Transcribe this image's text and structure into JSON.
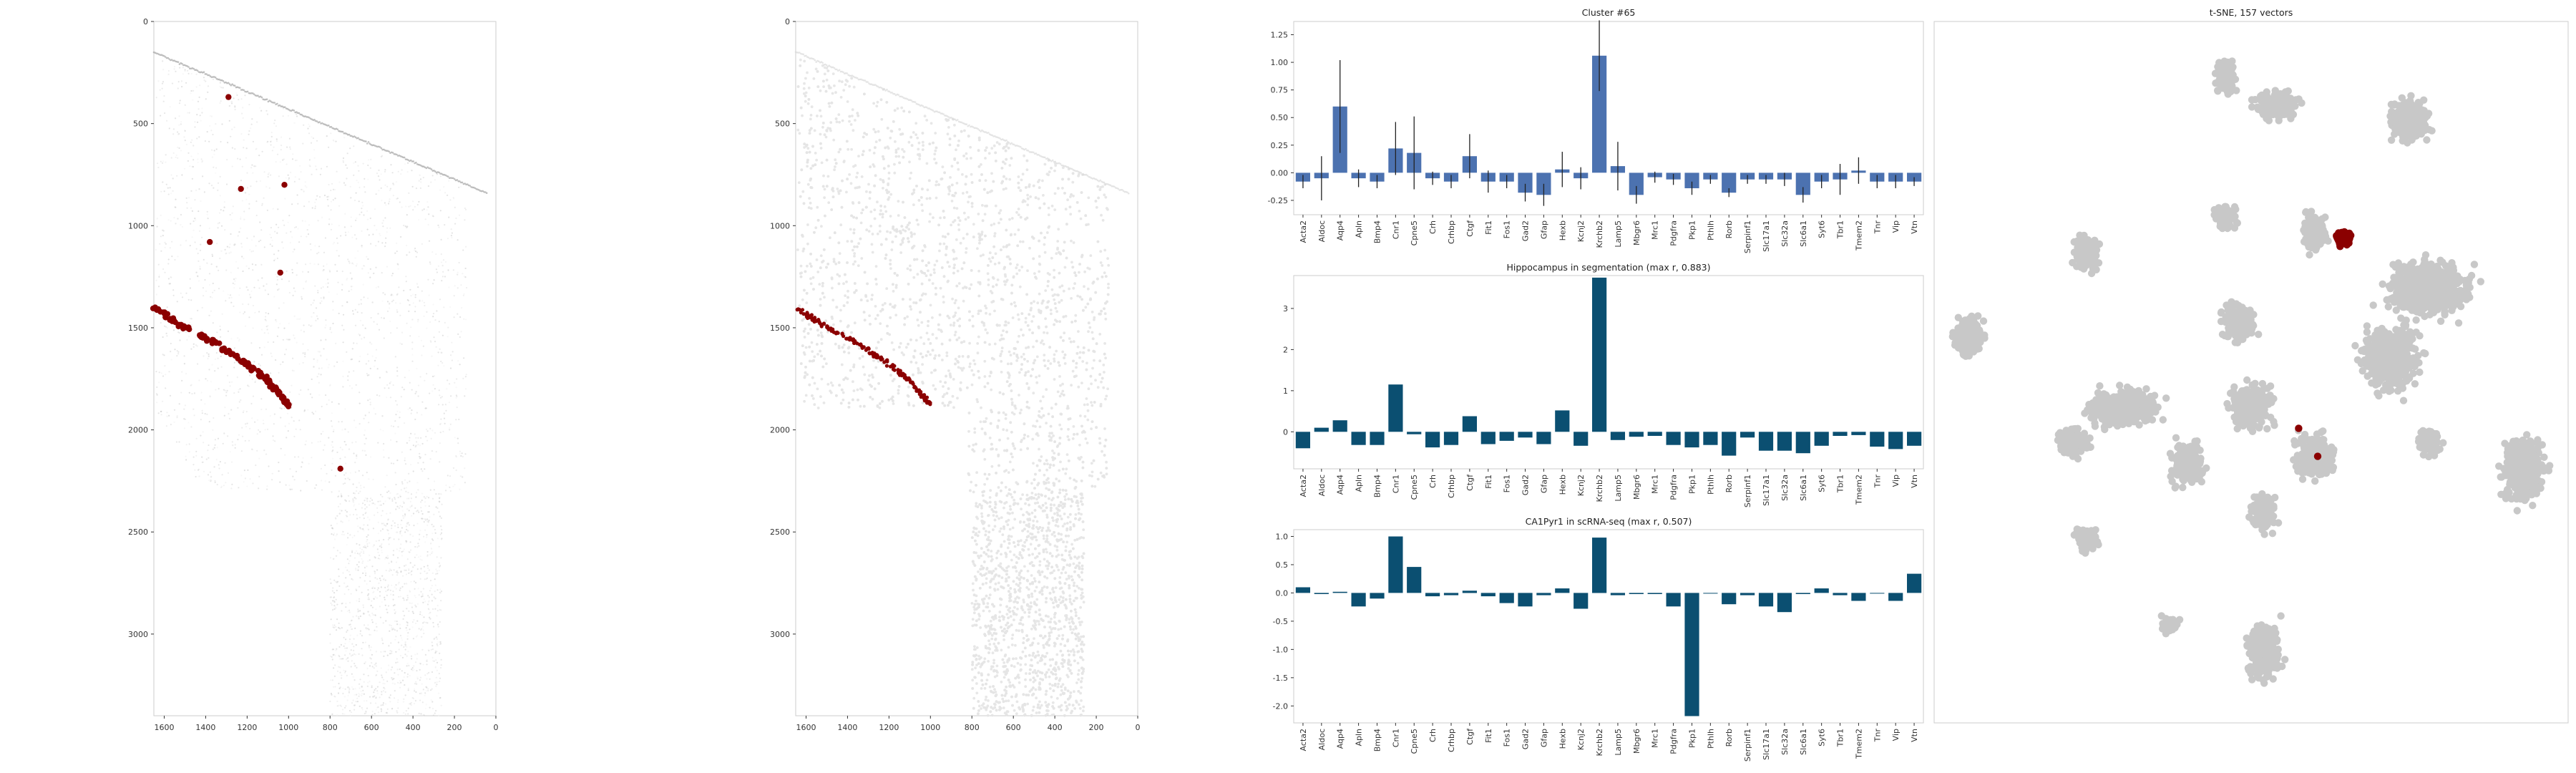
{
  "colors": {
    "highlight": "#8b0000",
    "bar_cluster": "#4c72b0",
    "bar_signed": "#0b4f71",
    "tsne_gray": "#c8c8c8",
    "cloud_gray": "#e6e6e6",
    "frame": "#cccccc",
    "text": "#333333"
  },
  "genes": [
    "Acta2",
    "Aldoc",
    "Aqp4",
    "Apln",
    "Bmp4",
    "Cnr1",
    "Cpne5",
    "Crh",
    "Crhbp",
    "Ctgf",
    "Fit1",
    "Fos1",
    "Gad2",
    "Gfap",
    "Hexb",
    "Kcnj2",
    "Krchb2",
    "Lamp5",
    "Mbgr6",
    "Mrc1",
    "Pdgfra",
    "Pkp1",
    "Pthlh",
    "Rorb",
    "Serpinf1",
    "Slc17a1",
    "Slc32a",
    "Slc6a1",
    "Syt6",
    "Tbr1",
    "Tmem2",
    "Tnr",
    "Vip",
    "Vtn"
  ],
  "chart_data": [
    {
      "id": "spatial-full",
      "type": "scatter",
      "title": "",
      "xticks": [
        1600,
        1400,
        1200,
        1000,
        800,
        600,
        400,
        200,
        0
      ],
      "yticks": [
        0,
        500,
        1000,
        1500,
        2000,
        2500,
        3000
      ],
      "xlim": [
        1650,
        0
      ],
      "ylim": [
        3400,
        0
      ],
      "background": "gray cell cloud",
      "highlight_isolated": [
        [
          1290,
          370
        ],
        [
          1230,
          820
        ],
        [
          1020,
          800
        ],
        [
          1380,
          1080
        ],
        [
          1040,
          1230
        ],
        [
          750,
          2190
        ]
      ],
      "highlight_band": [
        [
          1650,
          1400
        ],
        [
          1560,
          1460
        ],
        [
          1460,
          1520
        ],
        [
          1360,
          1570
        ],
        [
          1260,
          1640
        ],
        [
          1170,
          1700
        ],
        [
          1100,
          1760
        ],
        [
          1040,
          1830
        ],
        [
          1000,
          1880
        ]
      ]
    },
    {
      "id": "spatial-seg",
      "type": "scatter",
      "title": "",
      "xticks": [
        1600,
        1400,
        1200,
        1000,
        800,
        600,
        400,
        200,
        0
      ],
      "yticks": [
        0,
        500,
        1000,
        1500,
        2000,
        2500,
        3000
      ],
      "xlim": [
        1650,
        0
      ],
      "ylim": [
        3400,
        0
      ],
      "background": "segmented cell cloud",
      "highlight_band": [
        [
          1650,
          1400
        ],
        [
          1560,
          1460
        ],
        [
          1460,
          1520
        ],
        [
          1360,
          1570
        ],
        [
          1260,
          1640
        ],
        [
          1170,
          1700
        ],
        [
          1100,
          1760
        ],
        [
          1040,
          1830
        ],
        [
          1000,
          1880
        ]
      ]
    },
    {
      "id": "cluster",
      "type": "bar",
      "title": "Cluster #65",
      "categories": [
        "Acta2",
        "Aldoc",
        "Aqp4",
        "Apln",
        "Bmp4",
        "Cnr1",
        "Cpne5",
        "Crh",
        "Crhbp",
        "Ctgf",
        "Fit1",
        "Fos1",
        "Gad2",
        "Gfap",
        "Hexb",
        "Kcnj2",
        "Krchb2",
        "Lamp5",
        "Mbgr6",
        "Mrc1",
        "Pdgfra",
        "Pkp1",
        "Pthlh",
        "Rorb",
        "Serpinf1",
        "Slc17a1",
        "Slc32a",
        "Slc6a1",
        "Syt6",
        "Tbr1",
        "Tmem2",
        "Tnr",
        "Vip",
        "Vtn"
      ],
      "values": [
        -0.08,
        -0.05,
        0.6,
        -0.05,
        -0.08,
        0.22,
        0.18,
        -0.05,
        -0.08,
        0.15,
        -0.08,
        -0.08,
        -0.18,
        -0.2,
        0.03,
        -0.05,
        1.06,
        0.06,
        -0.2,
        -0.04,
        -0.06,
        -0.14,
        -0.06,
        -0.18,
        -0.06,
        -0.06,
        -0.06,
        -0.2,
        -0.08,
        -0.06,
        0.02,
        -0.08,
        -0.08,
        -0.08
      ],
      "errors": [
        0.06,
        0.2,
        0.42,
        0.08,
        0.06,
        0.24,
        0.33,
        0.06,
        0.06,
        0.2,
        0.1,
        0.06,
        0.08,
        0.1,
        0.16,
        0.1,
        0.32,
        0.22,
        0.08,
        0.05,
        0.05,
        0.06,
        0.04,
        0.04,
        0.04,
        0.04,
        0.06,
        0.07,
        0.06,
        0.14,
        0.12,
        0.06,
        0.06,
        0.04
      ],
      "yticks": [
        -0.25,
        0.0,
        0.25,
        0.5,
        0.75,
        1.0,
        1.25
      ],
      "ylim": [
        -0.38,
        1.37
      ]
    },
    {
      "id": "hippocampus",
      "type": "bar",
      "title": "Hippocampus in segmentation (max r, 0.883)",
      "categories": [
        "Acta2",
        "Aldoc",
        "Aqp4",
        "Apln",
        "Bmp4",
        "Cnr1",
        "Cpne5",
        "Crh",
        "Crhbp",
        "Ctgf",
        "Fit1",
        "Fos1",
        "Gad2",
        "Gfap",
        "Hexb",
        "Kcnj2",
        "Krchb2",
        "Lamp5",
        "Mbgr6",
        "Mrc1",
        "Pdgfra",
        "Pkp1",
        "Pthlh",
        "Rorb",
        "Serpinf1",
        "Slc17a1",
        "Slc32a",
        "Slc6a1",
        "Syt6",
        "Tbr1",
        "Tmem2",
        "Tnr",
        "Vip",
        "Vtn"
      ],
      "values": [
        -0.4,
        0.1,
        0.28,
        -0.32,
        -0.32,
        1.15,
        -0.06,
        -0.38,
        -0.32,
        0.38,
        -0.3,
        -0.22,
        -0.14,
        -0.3,
        0.52,
        -0.34,
        3.75,
        -0.2,
        -0.12,
        -0.1,
        -0.32,
        -0.38,
        -0.32,
        -0.58,
        -0.14,
        -0.46,
        -0.46,
        -0.52,
        -0.34,
        -0.1,
        -0.08,
        -0.36,
        -0.42,
        -0.34
      ],
      "yticks": [
        0,
        1,
        2,
        3
      ],
      "ylim": [
        -0.9,
        3.8
      ]
    },
    {
      "id": "ca1pyr1",
      "type": "bar",
      "title": "CA1Pyr1 in scRNA-seq (max r, 0.507)",
      "categories": [
        "Acta2",
        "Aldoc",
        "Aqp4",
        "Apln",
        "Bmp4",
        "Cnr1",
        "Cpne5",
        "Crh",
        "Crhbp",
        "Ctgf",
        "Fit1",
        "Fos1",
        "Gad2",
        "Gfap",
        "Hexb",
        "Kcnj2",
        "Krchb2",
        "Lamp5",
        "Mbgr6",
        "Mrc1",
        "Pdgfra",
        "Pkp1",
        "Pthlh",
        "Rorb",
        "Serpinf1",
        "Slc17a1",
        "Slc32a",
        "Slc6a1",
        "Syt6",
        "Tbr1",
        "Tmem2",
        "Tnr",
        "Vip",
        "Vtn"
      ],
      "values": [
        0.1,
        -0.02,
        0.02,
        -0.24,
        -0.1,
        1.0,
        0.46,
        -0.06,
        -0.04,
        0.04,
        -0.06,
        -0.18,
        -0.24,
        -0.04,
        0.08,
        -0.28,
        0.98,
        -0.04,
        -0.02,
        -0.02,
        -0.24,
        -2.18,
        0.0,
        -0.2,
        -0.04,
        -0.24,
        -0.34,
        -0.02,
        0.08,
        -0.04,
        -0.14,
        0.0,
        -0.14,
        0.34
      ],
      "yticks": [
        -2.0,
        -1.5,
        -1.0,
        -0.5,
        0.0,
        0.5,
        1.0
      ],
      "ylim": [
        -2.3,
        1.12
      ]
    },
    {
      "id": "tsne",
      "type": "scatter",
      "title": "t-SNE, 157 vectors",
      "highlight_cluster": [
        [
          0.645,
          0.31
        ]
      ],
      "highlight_isolated": [
        [
          0.575,
          0.58
        ],
        [
          0.605,
          0.62
        ]
      ]
    }
  ]
}
